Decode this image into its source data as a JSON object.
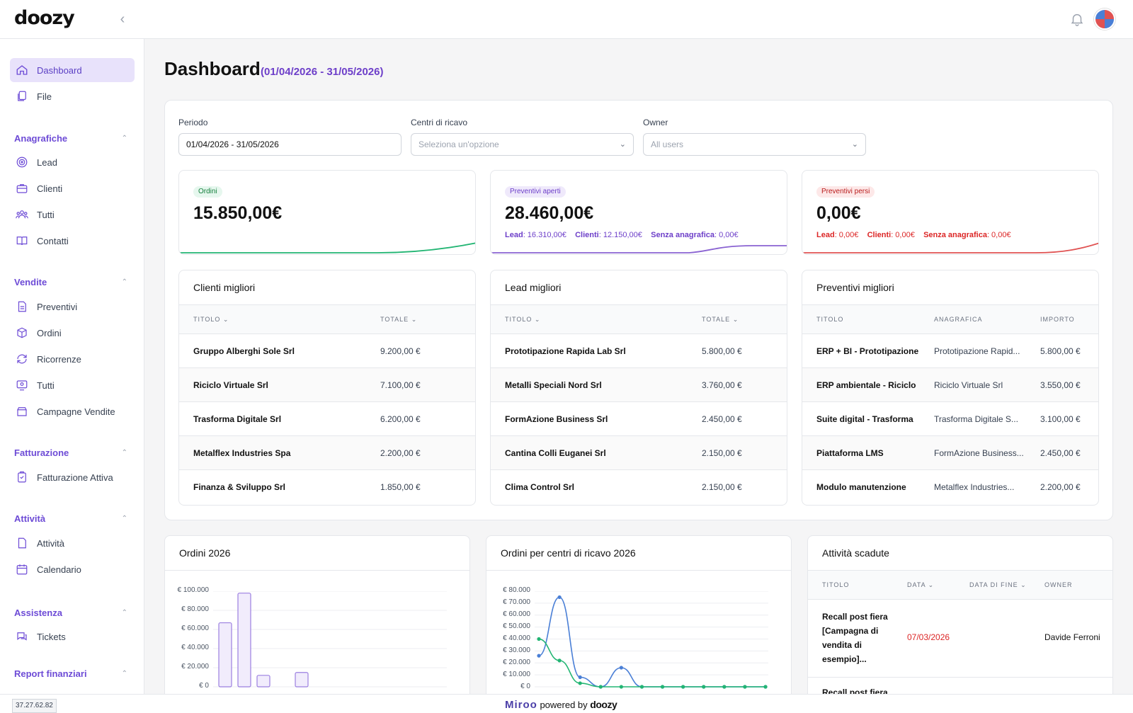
{
  "brand": {
    "logo": "doozy"
  },
  "sidebar": {
    "items_top": [
      {
        "label": "Dashboard",
        "icon": "home-icon"
      },
      {
        "label": "File",
        "icon": "files-icon"
      }
    ],
    "sections": [
      {
        "title": "Anagrafiche",
        "items": [
          "Lead",
          "Clienti",
          "Tutti",
          "Contatti"
        ]
      },
      {
        "title": "Vendite",
        "items": [
          "Preventivi",
          "Ordini",
          "Ricorrenze",
          "Tutti",
          "Campagne Vendite"
        ]
      },
      {
        "title": "Fatturazione",
        "items": [
          "Fatturazione Attiva"
        ]
      },
      {
        "title": "Attività",
        "items": [
          "Attività",
          "Calendario"
        ]
      },
      {
        "title": "Assistenza",
        "items": [
          "Tickets"
        ]
      },
      {
        "title": "Report finanziari",
        "items": []
      }
    ]
  },
  "ip": "37.27.62.82",
  "page": {
    "title": "Dashboard",
    "range": "(01/04/2026 - 31/05/2026)"
  },
  "filters": {
    "periodo_label": "Periodo",
    "periodo_value": "01/04/2026 - 31/05/2026",
    "centri_label": "Centri di ricavo",
    "centri_placeholder": "Seleziona un'opzione",
    "owner_label": "Owner",
    "owner_value": "All users"
  },
  "kpis": {
    "ordini": {
      "badge": "Ordini",
      "value": "15.850,00€"
    },
    "aperti": {
      "badge": "Preventivi aperti",
      "value": "28.460,00€",
      "lead_label": "Lead",
      "lead_value": ": 16.310,00€",
      "clienti_label": "Clienti",
      "clienti_value": ": 12.150,00€",
      "senza_label": "Senza anagrafica",
      "senza_value": ": 0,00€"
    },
    "persi": {
      "badge": "Preventivi persi",
      "value": "0,00€",
      "lead_label": "Lead",
      "lead_value": ": 0,00€",
      "clienti_label": "Clienti",
      "clienti_value": ": 0,00€",
      "senza_label": "Senza anagrafica",
      "senza_value": ": 0,00€"
    }
  },
  "clienti_migliori": {
    "title": "Clienti migliori",
    "col1": "TITOLO",
    "col2": "TOTALE",
    "rows": [
      [
        "Gruppo Alberghi Sole Srl",
        "9.200,00 €"
      ],
      [
        "Riciclo Virtuale Srl",
        "7.100,00 €"
      ],
      [
        "Trasforma Digitale Srl",
        "6.200,00 €"
      ],
      [
        "Metalflex Industries Spa",
        "2.200,00 €"
      ],
      [
        "Finanza & Sviluppo Srl",
        "1.850,00 €"
      ]
    ]
  },
  "lead_migliori": {
    "title": "Lead migliori",
    "col1": "TITOLO",
    "col2": "TOTALE",
    "rows": [
      [
        "Prototipazione Rapida Lab Srl",
        "5.800,00 €"
      ],
      [
        "Metalli Speciali Nord Srl",
        "3.760,00 €"
      ],
      [
        "FormAzione Business Srl",
        "2.450,00 €"
      ],
      [
        "Cantina Colli Euganei Srl",
        "2.150,00 €"
      ],
      [
        "Clima Control Srl",
        "2.150,00 €"
      ]
    ]
  },
  "preventivi_migliori": {
    "title": "Preventivi migliori",
    "col1": "TITOLO",
    "col2": "ANAGRAFICA",
    "col3": "IMPORTO",
    "rows": [
      [
        "ERP + BI - Prototipazione",
        "Prototipazione Rapid...",
        "5.800,00 €"
      ],
      [
        "ERP ambientale - Riciclo",
        "Riciclo Virtuale Srl",
        "3.550,00 €"
      ],
      [
        "Suite digital - Trasforma",
        "Trasforma Digitale S...",
        "3.100,00 €"
      ],
      [
        "Piattaforma LMS",
        "FormAzione Business...",
        "2.450,00 €"
      ],
      [
        "Modulo manutenzione",
        "Metalflex Industries...",
        "2.200,00 €"
      ]
    ]
  },
  "ordini_chart": {
    "title": "Ordini 2026",
    "y_ticks": [
      "€ 100.000",
      "€ 80.000",
      "€ 60.000",
      "€ 40.000",
      "€ 20.000",
      "€ 0"
    ]
  },
  "centri_chart": {
    "title": "Ordini per centri di ricavo 2026",
    "y_ticks": [
      "€ 80.000",
      "€ 70.000",
      "€ 60.000",
      "€ 50.000",
      "€ 40.000",
      "€ 30.000",
      "€ 20.000",
      "€ 10.000",
      "€ 0"
    ]
  },
  "chart_data": [
    {
      "type": "bar",
      "title": "Ordini 2026",
      "ylim": [
        0,
        100000
      ],
      "values": [
        67000,
        98000,
        12000,
        0,
        15000
      ],
      "color": "#f1ecfc",
      "stroke": "#9b7fe0"
    },
    {
      "type": "line",
      "title": "Ordini per centri di ricavo 2026",
      "ylim": [
        0,
        80000
      ],
      "series": [
        {
          "color": "#4a7fd6",
          "values": [
            26000,
            75000,
            8000,
            0,
            16000,
            0,
            0,
            0,
            0,
            0,
            0,
            0
          ]
        },
        {
          "color": "#22b573",
          "values": [
            40000,
            22000,
            3000,
            0,
            0,
            0,
            0,
            0,
            0,
            0,
            0,
            0
          ]
        }
      ]
    }
  ],
  "attivita_scadute": {
    "title": "Attività scadute",
    "col1": "TITOLO",
    "col2": "DATA",
    "col3": "DATA DI FINE",
    "col4": "OWNER",
    "row1": {
      "title_lines": [
        "Recall post fiera",
        "[Campagna di",
        "vendita di",
        "esempio]..."
      ],
      "data": "07/03/2026",
      "owner": "Davide Ferroni"
    },
    "row2_partial": "Recall post fiera"
  },
  "footer": {
    "brand": "Miroo",
    "powered": "powered by",
    "doozy": "doozy"
  },
  "colors": {
    "accent": "#6d3fc9",
    "green": "#22b573",
    "purple": "#8a63d2",
    "red": "#e05252"
  }
}
